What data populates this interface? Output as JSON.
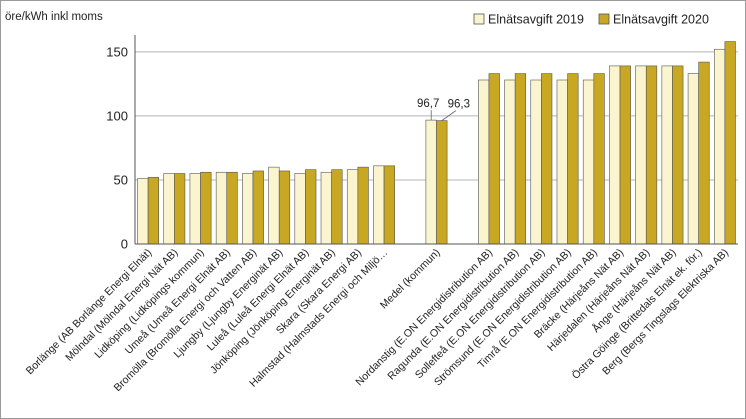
{
  "chart_data": {
    "type": "bar",
    "ylabel": "öre/kWh inkl moms",
    "ylim": [
      0,
      160
    ],
    "yticks": [
      0,
      50,
      100,
      150
    ],
    "grid": true,
    "legend_position": "top-right",
    "colors": {
      "s2019": "#fbf5cf",
      "s2020": "#c8a722",
      "edge": "#555555",
      "grid": "#b5b5b5"
    },
    "series": [
      {
        "name": "Elnätsavgift 2019",
        "key": "s2019"
      },
      {
        "name": "Elnätsavgift 2020",
        "key": "s2020"
      }
    ],
    "categories": [
      {
        "label": "Borlänge (AB Borlänge Energi Elnät)",
        "v2019": 51,
        "v2020": 52
      },
      {
        "label": "Mölndal (Mölndal Energi Nät AB)",
        "v2019": 55,
        "v2020": 55
      },
      {
        "label": "Lidköping (Lidköpings kommun)",
        "v2019": 55,
        "v2020": 56
      },
      {
        "label": "Umeå (Umeå Energi Elnät AB)",
        "v2019": 56,
        "v2020": 56
      },
      {
        "label": "Bromölla (Bromölla Energi och Vatten AB)",
        "v2019": 55,
        "v2020": 57
      },
      {
        "label": "Ljungby (Ljungby Energinät AB)",
        "v2019": 60,
        "v2020": 57
      },
      {
        "label": "Luleå (Luleå Energi Elnät AB)",
        "v2019": 55,
        "v2020": 58
      },
      {
        "label": "Jönköping (Jönköping Energinät AB)",
        "v2019": 56,
        "v2020": 58
      },
      {
        "label": "Skara (Skara Energi AB)",
        "v2019": 58,
        "v2020": 60
      },
      {
        "label": "Halmstad (Halmstads Energi och Miljö…",
        "v2019": 61,
        "v2020": 61
      },
      {
        "label": "",
        "v2019": null,
        "v2020": null
      },
      {
        "label": "Medel (kommun)",
        "v2019": 96.7,
        "v2020": 96.3,
        "data_label_2019": "96,7",
        "data_label_2020": "96,3"
      },
      {
        "label": "",
        "v2019": null,
        "v2020": null
      },
      {
        "label": "Nordanstig (E.ON Energidistribution AB)",
        "v2019": 128,
        "v2020": 133
      },
      {
        "label": "Ragunda (E.ON Energidistribution AB)",
        "v2019": 128,
        "v2020": 133
      },
      {
        "label": "Sollefteå (E.ON Energidistribution AB)",
        "v2019": 128,
        "v2020": 133
      },
      {
        "label": "Strömsund (E.ON Energidistribution AB)",
        "v2019": 128,
        "v2020": 133
      },
      {
        "label": "Timrå (E.ON Energidistribution AB)",
        "v2019": 128,
        "v2020": 133
      },
      {
        "label": "Bräcke (Härjeåns Nät AB)",
        "v2019": 139,
        "v2020": 139
      },
      {
        "label": "Härjedalen (Härjeåns Nät AB)",
        "v2019": 139,
        "v2020": 139
      },
      {
        "label": "Ånge (Härjeåns Nät AB)",
        "v2019": 139,
        "v2020": 139
      },
      {
        "label": "Östra Göinge (Brittedals Elnät ek. för.)",
        "v2019": 133,
        "v2020": 142
      },
      {
        "label": "Berg (Bergs Tingslags Elektriska AB)",
        "v2019": 152,
        "v2020": 158
      }
    ]
  }
}
